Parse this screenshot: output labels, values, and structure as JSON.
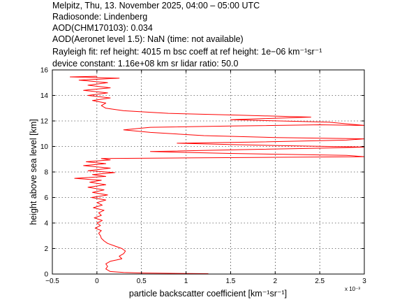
{
  "header": {
    "line1": "Melpitz, Thu, 13. November 2025, 04:00 – 05:00 UTC",
    "line2": "Radiosonde: Lindenberg",
    "line3": "AOD(CHM170103): 0.034",
    "line4": "AOD(Aeronet level 1.5): NaN   (time: not available)",
    "line5": "Rayleigh fit:     ref height: 4015 m     bsc coeff at ref height: 1e−06 km⁻¹sr⁻¹",
    "line6": "device constant: 1.16e+08 km sr     lidar ratio: 50.0"
  },
  "chart_data": {
    "type": "line",
    "xlabel": "particle backscatter coefficient [km⁻¹sr⁻¹]",
    "ylabel": "height above sea level [km]",
    "x_multiplier_label": "x 10⁻³",
    "xlim": [
      -0.5,
      3.0
    ],
    "ylim": [
      0,
      16
    ],
    "xticks": [
      -0.5,
      0,
      0.5,
      1,
      1.5,
      2,
      2.5,
      3
    ],
    "xtick_labels": [
      "−0.5",
      "0",
      "0.5",
      "1",
      "1.5",
      "2",
      "2.5",
      "3"
    ],
    "yticks": [
      0,
      2,
      4,
      6,
      8,
      10,
      12,
      14,
      16
    ],
    "ytick_labels": [
      "0",
      "2",
      "4",
      "6",
      "8",
      "10",
      "12",
      "14",
      "16"
    ],
    "grid": true,
    "series": [
      {
        "color": "#ff0000",
        "points": [
          [
            1.25,
            0.03
          ],
          [
            0.9,
            0.05
          ],
          [
            0.5,
            0.08
          ],
          [
            0.3,
            0.12
          ],
          [
            0.15,
            0.2
          ],
          [
            0.1,
            0.4
          ],
          [
            0.12,
            0.6
          ],
          [
            0.1,
            0.8
          ],
          [
            0.15,
            1.0
          ],
          [
            0.22,
            1.1
          ],
          [
            0.28,
            1.2
          ],
          [
            0.25,
            1.4
          ],
          [
            0.3,
            1.6
          ],
          [
            0.32,
            1.8
          ],
          [
            0.28,
            2.0
          ],
          [
            0.2,
            2.2
          ],
          [
            0.12,
            2.4
          ],
          [
            0.08,
            2.6
          ],
          [
            0.05,
            2.8
          ],
          [
            0.04,
            3.0
          ],
          [
            0.02,
            3.2
          ],
          [
            0.05,
            3.4
          ],
          [
            -0.02,
            3.6
          ],
          [
            0.04,
            3.8
          ],
          [
            0.0,
            4.0
          ],
          [
            0.06,
            4.2
          ],
          [
            -0.03,
            4.4
          ],
          [
            0.05,
            4.6
          ],
          [
            0.02,
            4.8
          ],
          [
            0.08,
            5.0
          ],
          [
            -0.04,
            5.2
          ],
          [
            0.06,
            5.4
          ],
          [
            0.0,
            5.6
          ],
          [
            0.1,
            5.8
          ],
          [
            -0.06,
            6.0
          ],
          [
            0.12,
            6.2
          ],
          [
            -0.05,
            6.4
          ],
          [
            0.08,
            6.6
          ],
          [
            -0.1,
            6.8
          ],
          [
            0.1,
            7.0
          ],
          [
            -0.08,
            7.2
          ],
          [
            0.05,
            7.35
          ],
          [
            -0.25,
            7.5
          ],
          [
            0.1,
            7.65
          ],
          [
            -0.05,
            7.8
          ],
          [
            0.2,
            7.95
          ],
          [
            -0.1,
            8.1
          ],
          [
            0.15,
            8.3
          ],
          [
            -0.15,
            8.5
          ],
          [
            0.1,
            8.65
          ],
          [
            -0.12,
            8.8
          ],
          [
            0.15,
            8.95
          ],
          [
            0.05,
            9.05
          ],
          [
            1.0,
            9.1
          ],
          [
            2.0,
            9.15
          ],
          [
            3.0,
            9.2
          ],
          [
            2.8,
            9.3
          ],
          [
            1.5,
            9.45
          ],
          [
            0.6,
            9.6
          ],
          [
            1.6,
            9.75
          ],
          [
            2.4,
            9.85
          ],
          [
            3.0,
            9.95
          ],
          [
            2.2,
            10.05
          ],
          [
            1.5,
            10.15
          ],
          [
            0.9,
            10.25
          ],
          [
            1.8,
            10.35
          ],
          [
            2.8,
            10.5
          ],
          [
            3.0,
            10.6
          ],
          [
            2.0,
            10.7
          ],
          [
            1.2,
            10.85
          ],
          [
            0.6,
            11.1
          ],
          [
            0.3,
            11.3
          ],
          [
            0.6,
            11.5
          ],
          [
            1.5,
            11.6
          ],
          [
            2.5,
            11.7
          ],
          [
            3.0,
            11.65
          ],
          [
            2.6,
            11.9
          ],
          [
            1.5,
            12.1
          ],
          [
            2.4,
            12.3
          ],
          [
            1.6,
            12.45
          ],
          [
            0.8,
            12.6
          ],
          [
            0.3,
            12.8
          ],
          [
            0.1,
            13.0
          ],
          [
            0.05,
            13.2
          ],
          [
            0.1,
            13.4
          ],
          [
            -0.05,
            13.6
          ],
          [
            0.15,
            13.8
          ],
          [
            -0.1,
            14.0
          ],
          [
            0.12,
            14.2
          ],
          [
            -0.15,
            14.4
          ],
          [
            0.15,
            14.6
          ],
          [
            -0.1,
            14.8
          ],
          [
            0.12,
            15.0
          ],
          [
            -0.2,
            15.2
          ],
          [
            0.25,
            15.35
          ],
          [
            -0.3,
            15.45
          ],
          [
            0.0,
            15.5
          ]
        ]
      }
    ]
  }
}
